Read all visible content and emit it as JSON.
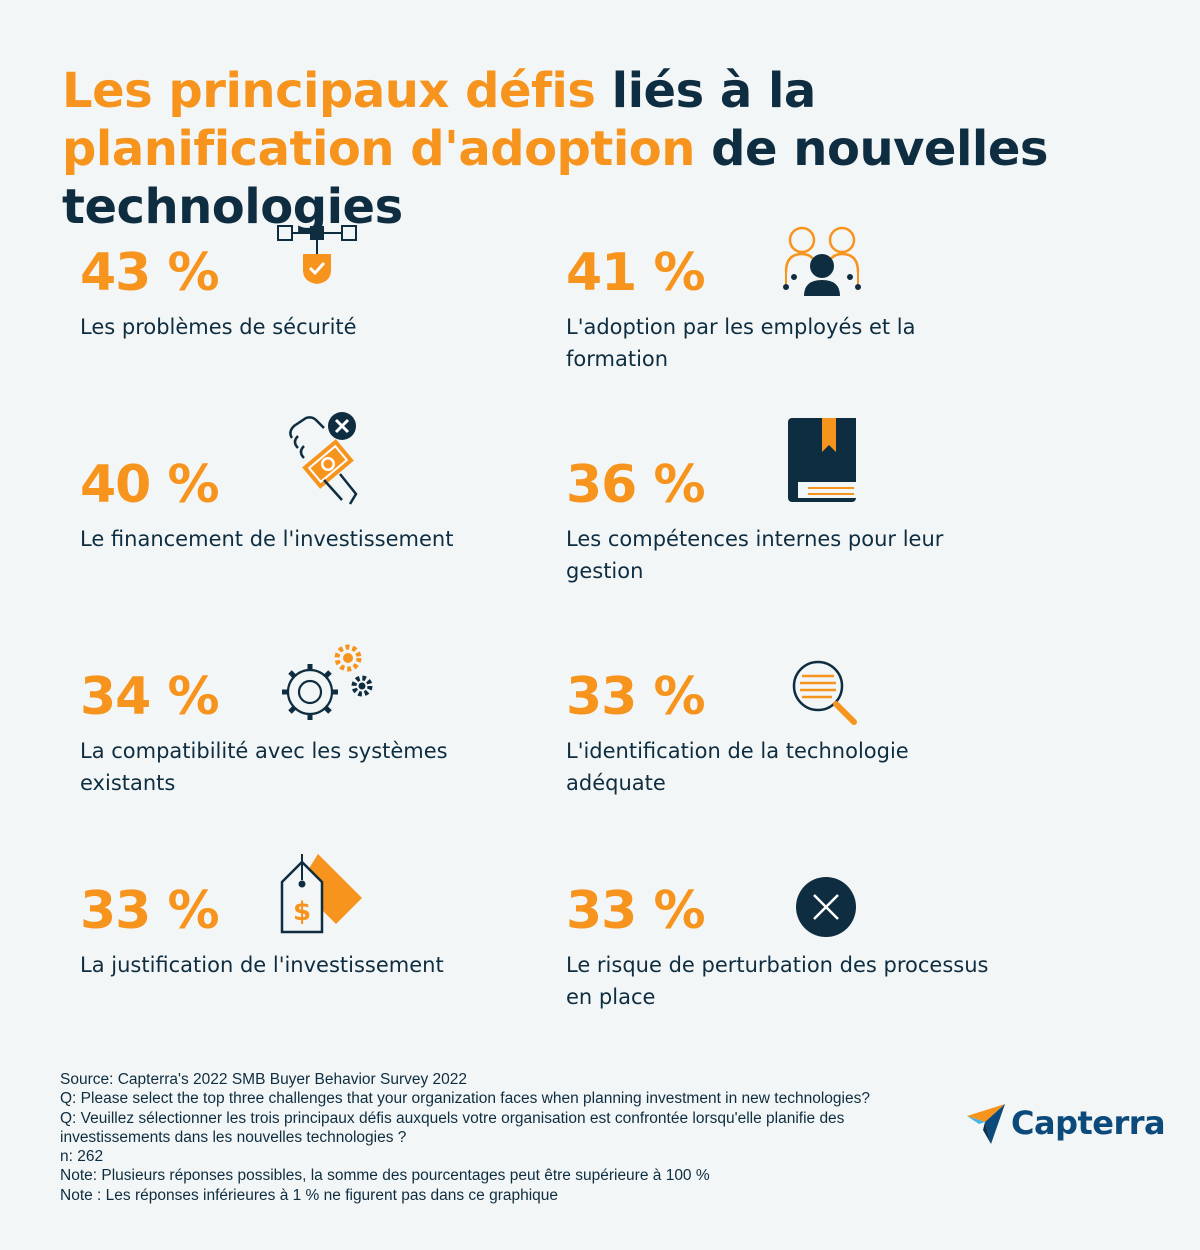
{
  "title": {
    "part1": "Les principaux défis",
    "part2": " liés à la ",
    "part3": "planification d'adoption",
    "part4": " de nouvelles technologies"
  },
  "stats": [
    {
      "percent": "43 %",
      "label": "Les problèmes de sécurité",
      "icon": "security-shield-icon"
    },
    {
      "percent": "41 %",
      "label": "L'adoption par les employés et la formation",
      "icon": "employees-icon"
    },
    {
      "percent": "40 %",
      "label": "Le financement de l'investissement",
      "icon": "money-hand-icon"
    },
    {
      "percent": "36 %",
      "label": "Les compétences internes pour leur gestion",
      "icon": "book-icon"
    },
    {
      "percent": "34 %",
      "label": "La compatibilité avec les systèmes existants",
      "icon": "gears-icon"
    },
    {
      "percent": "33 %",
      "label": "L'identification de la technologie adéquate",
      "icon": "magnifier-icon"
    },
    {
      "percent": "33 %",
      "label": "La justification de l'investissement",
      "icon": "price-tag-icon"
    },
    {
      "percent": "33 %",
      "label": "Le risque de perturbation des processus en place",
      "icon": "close-circle-icon"
    }
  ],
  "footer": {
    "source": "Source: Capterra's 2022 SMB Buyer Behavior Survey 2022",
    "q_en": "Q: Please select the top three challenges that your organization faces when planning investment in new technologies?",
    "q_fr": "Q: Veuillez sélectionner les trois principaux défis auxquels votre organisation est confrontée lorsqu'elle planifie des investissements dans les nouvelles technologies ?",
    "n": "n: 262",
    "note1": "Note: Plusieurs réponses possibles, la somme des pourcentages peut être supérieure à 100 %",
    "note2": "Note : Les réponses inférieures à 1 % ne figurent pas dans ce graphique"
  },
  "logo": {
    "text": "Capterra"
  },
  "colors": {
    "accent": "#f7941d",
    "dark": "#0f2d40",
    "background": "#f2f6f6",
    "brand_blue": "#0b4a7a"
  }
}
